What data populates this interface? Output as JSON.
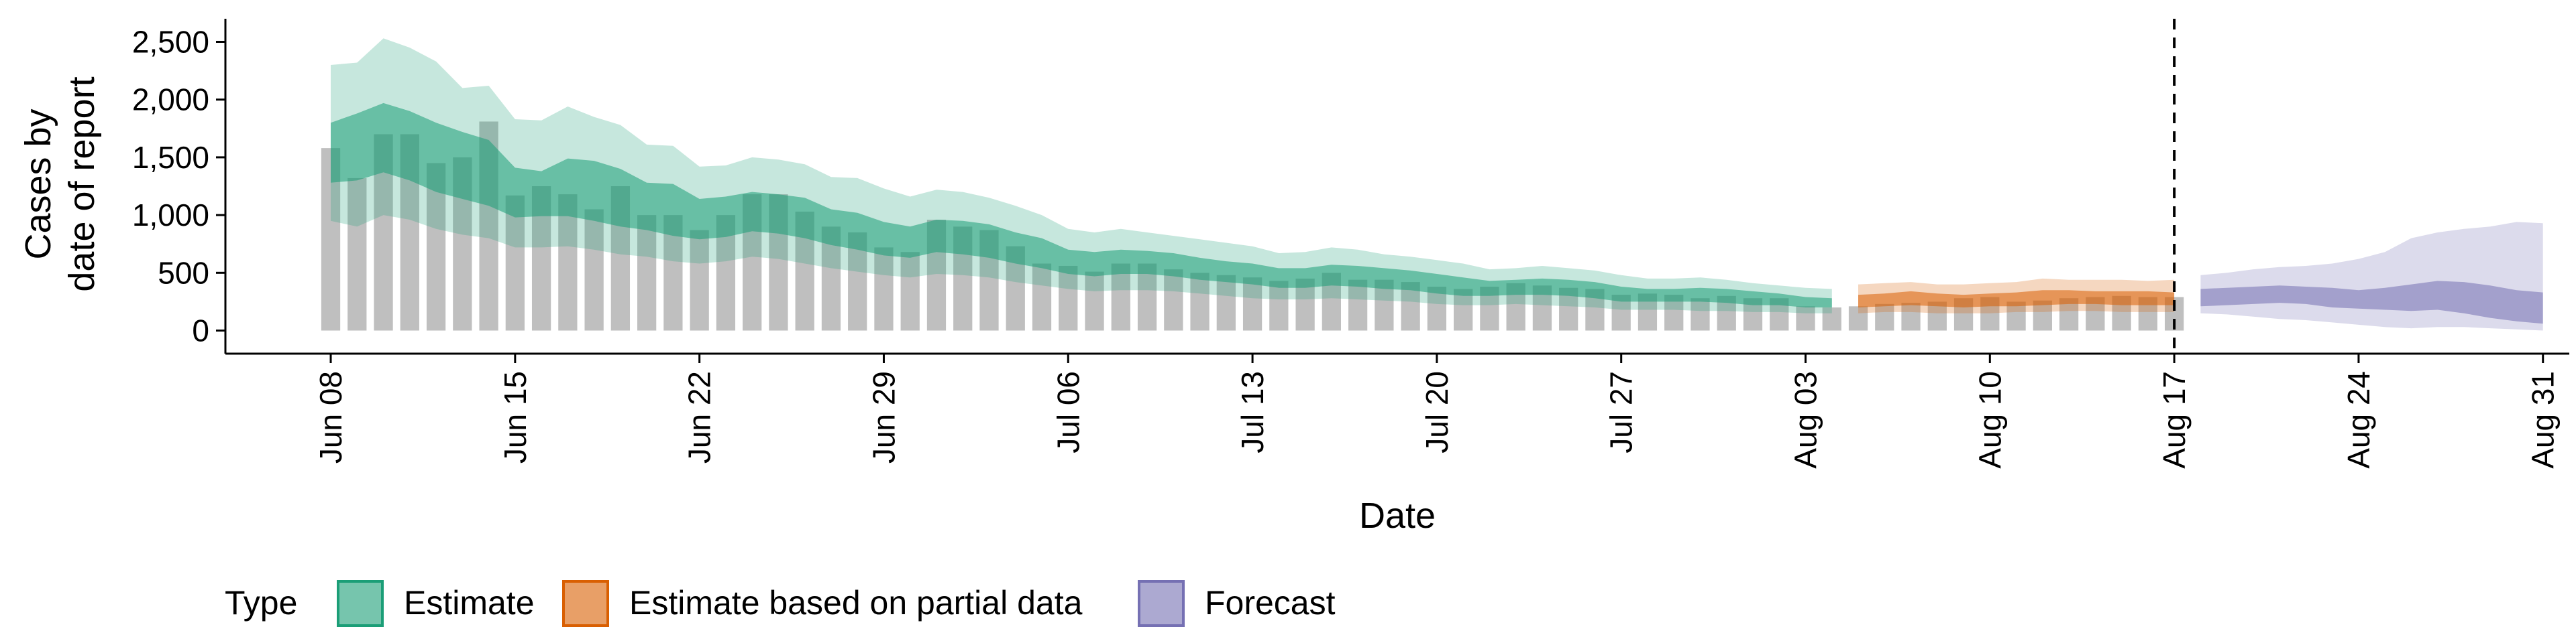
{
  "chart_data": {
    "type": "area",
    "xlabel": "Date",
    "ylabel_lines": [
      "Cases by",
      "date of report"
    ],
    "x_range": [
      "2020-06-04",
      "2020-09-01"
    ],
    "ylim": [
      -200,
      2700
    ],
    "y_ticks": [
      0,
      500,
      1000,
      1500,
      2000,
      2500
    ],
    "y_tick_labels": [
      "0",
      "500",
      "1,000",
      "1,500",
      "2,000",
      "2,500"
    ],
    "x_ticks": [
      "2020-06-08",
      "2020-06-15",
      "2020-06-22",
      "2020-06-29",
      "2020-07-06",
      "2020-07-13",
      "2020-07-20",
      "2020-07-27",
      "2020-08-03",
      "2020-08-10",
      "2020-08-17",
      "2020-08-24",
      "2020-08-31"
    ],
    "x_tick_labels": [
      "Jun 08",
      "Jun 15",
      "Jun 22",
      "Jun 29",
      "Jul 06",
      "Jul 13",
      "Jul 20",
      "Jul 27",
      "Aug 03",
      "Aug 10",
      "Aug 17",
      "Aug 24",
      "Aug 31"
    ],
    "forecast_line_date": "2020-08-17",
    "grid": false,
    "legend": {
      "position": "bottom",
      "title": "Type",
      "items": [
        {
          "label": "Estimate",
          "color": "#1b9e77"
        },
        {
          "label": "Estimate based on partial data",
          "color": "#d95f02"
        },
        {
          "label": "Forecast",
          "color": "#7570b3"
        }
      ]
    },
    "reported_cases": {
      "start_date": "2020-06-08",
      "bar_color": "#bfbfbf",
      "values": [
        1580,
        1320,
        1700,
        1700,
        1450,
        1500,
        1810,
        1170,
        1250,
        1180,
        1050,
        1250,
        1000,
        1000,
        870,
        1000,
        1180,
        1180,
        1030,
        900,
        850,
        720,
        680,
        960,
        900,
        870,
        730,
        580,
        560,
        510,
        580,
        580,
        530,
        500,
        480,
        460,
        430,
        450,
        500,
        440,
        440,
        420,
        380,
        360,
        380,
        410,
        390,
        370,
        360,
        310,
        320,
        310,
        280,
        300,
        280,
        280,
        210,
        200,
        210,
        230,
        240,
        250,
        280,
        290,
        250,
        260,
        280,
        290,
        300,
        290,
        290
      ]
    },
    "series": [
      {
        "name": "Estimate",
        "color": "#1b9e77",
        "dates": [
          "2020-06-08",
          "2020-06-09",
          "2020-06-10",
          "2020-06-11",
          "2020-06-12",
          "2020-06-13",
          "2020-06-14",
          "2020-06-15",
          "2020-06-16",
          "2020-06-17",
          "2020-06-18",
          "2020-06-19",
          "2020-06-20",
          "2020-06-21",
          "2020-06-22",
          "2020-06-23",
          "2020-06-24",
          "2020-06-25",
          "2020-06-26",
          "2020-06-27",
          "2020-06-28",
          "2020-06-29",
          "2020-06-30",
          "2020-07-01",
          "2020-07-02",
          "2020-07-03",
          "2020-07-04",
          "2020-07-05",
          "2020-07-06",
          "2020-07-07",
          "2020-07-08",
          "2020-07-09",
          "2020-07-10",
          "2020-07-11",
          "2020-07-12",
          "2020-07-13",
          "2020-07-14",
          "2020-07-15",
          "2020-07-16",
          "2020-07-17",
          "2020-07-18",
          "2020-07-19",
          "2020-07-20",
          "2020-07-21",
          "2020-07-22",
          "2020-07-23",
          "2020-07-24",
          "2020-07-25",
          "2020-07-26",
          "2020-07-27",
          "2020-07-28",
          "2020-07-29",
          "2020-07-30",
          "2020-07-31",
          "2020-08-01",
          "2020-08-02",
          "2020-08-03",
          "2020-08-04"
        ],
        "lower90": [
          950,
          900,
          1000,
          960,
          880,
          830,
          800,
          720,
          720,
          730,
          700,
          660,
          640,
          600,
          580,
          600,
          640,
          620,
          580,
          540,
          510,
          480,
          460,
          490,
          480,
          460,
          420,
          390,
          360,
          340,
          350,
          350,
          340,
          320,
          300,
          280,
          270,
          270,
          280,
          270,
          260,
          250,
          230,
          220,
          220,
          230,
          220,
          210,
          200,
          180,
          180,
          180,
          170,
          170,
          160,
          160,
          150,
          150
        ],
        "upper90": [
          2300,
          2320,
          2530,
          2450,
          2330,
          2100,
          2120,
          1830,
          1820,
          1940,
          1850,
          1780,
          1610,
          1600,
          1420,
          1430,
          1500,
          1480,
          1440,
          1330,
          1320,
          1230,
          1160,
          1220,
          1200,
          1150,
          1080,
          1000,
          880,
          850,
          880,
          850,
          820,
          790,
          760,
          730,
          670,
          680,
          720,
          700,
          660,
          640,
          610,
          580,
          530,
          540,
          560,
          540,
          520,
          480,
          450,
          450,
          460,
          440,
          410,
          390,
          370,
          360
        ],
        "lower50": [
          1280,
          1300,
          1370,
          1300,
          1200,
          1140,
          1080,
          980,
          990,
          990,
          950,
          900,
          870,
          820,
          790,
          810,
          860,
          840,
          800,
          740,
          700,
          650,
          630,
          680,
          660,
          630,
          580,
          540,
          490,
          470,
          490,
          490,
          470,
          440,
          420,
          400,
          370,
          370,
          390,
          380,
          360,
          350,
          320,
          300,
          300,
          310,
          310,
          300,
          280,
          250,
          250,
          250,
          250,
          240,
          220,
          220,
          200,
          200
        ],
        "upper50": [
          1800,
          1880,
          1970,
          1900,
          1800,
          1720,
          1650,
          1410,
          1380,
          1490,
          1470,
          1400,
          1280,
          1270,
          1140,
          1160,
          1200,
          1180,
          1150,
          1050,
          1020,
          940,
          900,
          960,
          950,
          920,
          850,
          800,
          700,
          680,
          700,
          690,
          670,
          630,
          600,
          580,
          540,
          540,
          570,
          560,
          540,
          520,
          490,
          460,
          430,
          440,
          450,
          440,
          420,
          380,
          360,
          360,
          370,
          360,
          340,
          320,
          290,
          280
        ]
      },
      {
        "name": "Estimate based on partial data",
        "color": "#d95f02",
        "dates": [
          "2020-08-05",
          "2020-08-06",
          "2020-08-07",
          "2020-08-08",
          "2020-08-09",
          "2020-08-10",
          "2020-08-11",
          "2020-08-12",
          "2020-08-13",
          "2020-08-14",
          "2020-08-15",
          "2020-08-16",
          "2020-08-17"
        ],
        "lower90": [
          150,
          160,
          160,
          150,
          150,
          150,
          160,
          160,
          170,
          170,
          160,
          160,
          160
        ],
        "upper90": [
          400,
          410,
          420,
          400,
          400,
          410,
          420,
          450,
          440,
          440,
          440,
          430,
          440
        ],
        "lower50": [
          200,
          210,
          220,
          210,
          200,
          210,
          210,
          220,
          230,
          230,
          220,
          220,
          220
        ],
        "upper50": [
          310,
          320,
          340,
          320,
          310,
          320,
          330,
          350,
          350,
          340,
          340,
          340,
          330
        ]
      },
      {
        "name": "Forecast",
        "color": "#7570b3",
        "dates": [
          "2020-08-18",
          "2020-08-19",
          "2020-08-20",
          "2020-08-21",
          "2020-08-22",
          "2020-08-23",
          "2020-08-24",
          "2020-08-25",
          "2020-08-26",
          "2020-08-27",
          "2020-08-28",
          "2020-08-29",
          "2020-08-30",
          "2020-08-31"
        ],
        "lower90": [
          150,
          140,
          120,
          100,
          90,
          70,
          50,
          30,
          20,
          30,
          30,
          20,
          10,
          0
        ],
        "upper90": [
          480,
          500,
          530,
          550,
          560,
          580,
          620,
          680,
          800,
          850,
          880,
          900,
          940,
          930
        ],
        "lower50": [
          210,
          220,
          230,
          240,
          230,
          200,
          190,
          180,
          170,
          180,
          150,
          110,
          80,
          60
        ],
        "upper50": [
          360,
          370,
          380,
          390,
          380,
          370,
          350,
          370,
          400,
          430,
          420,
          390,
          350,
          330
        ]
      }
    ]
  }
}
